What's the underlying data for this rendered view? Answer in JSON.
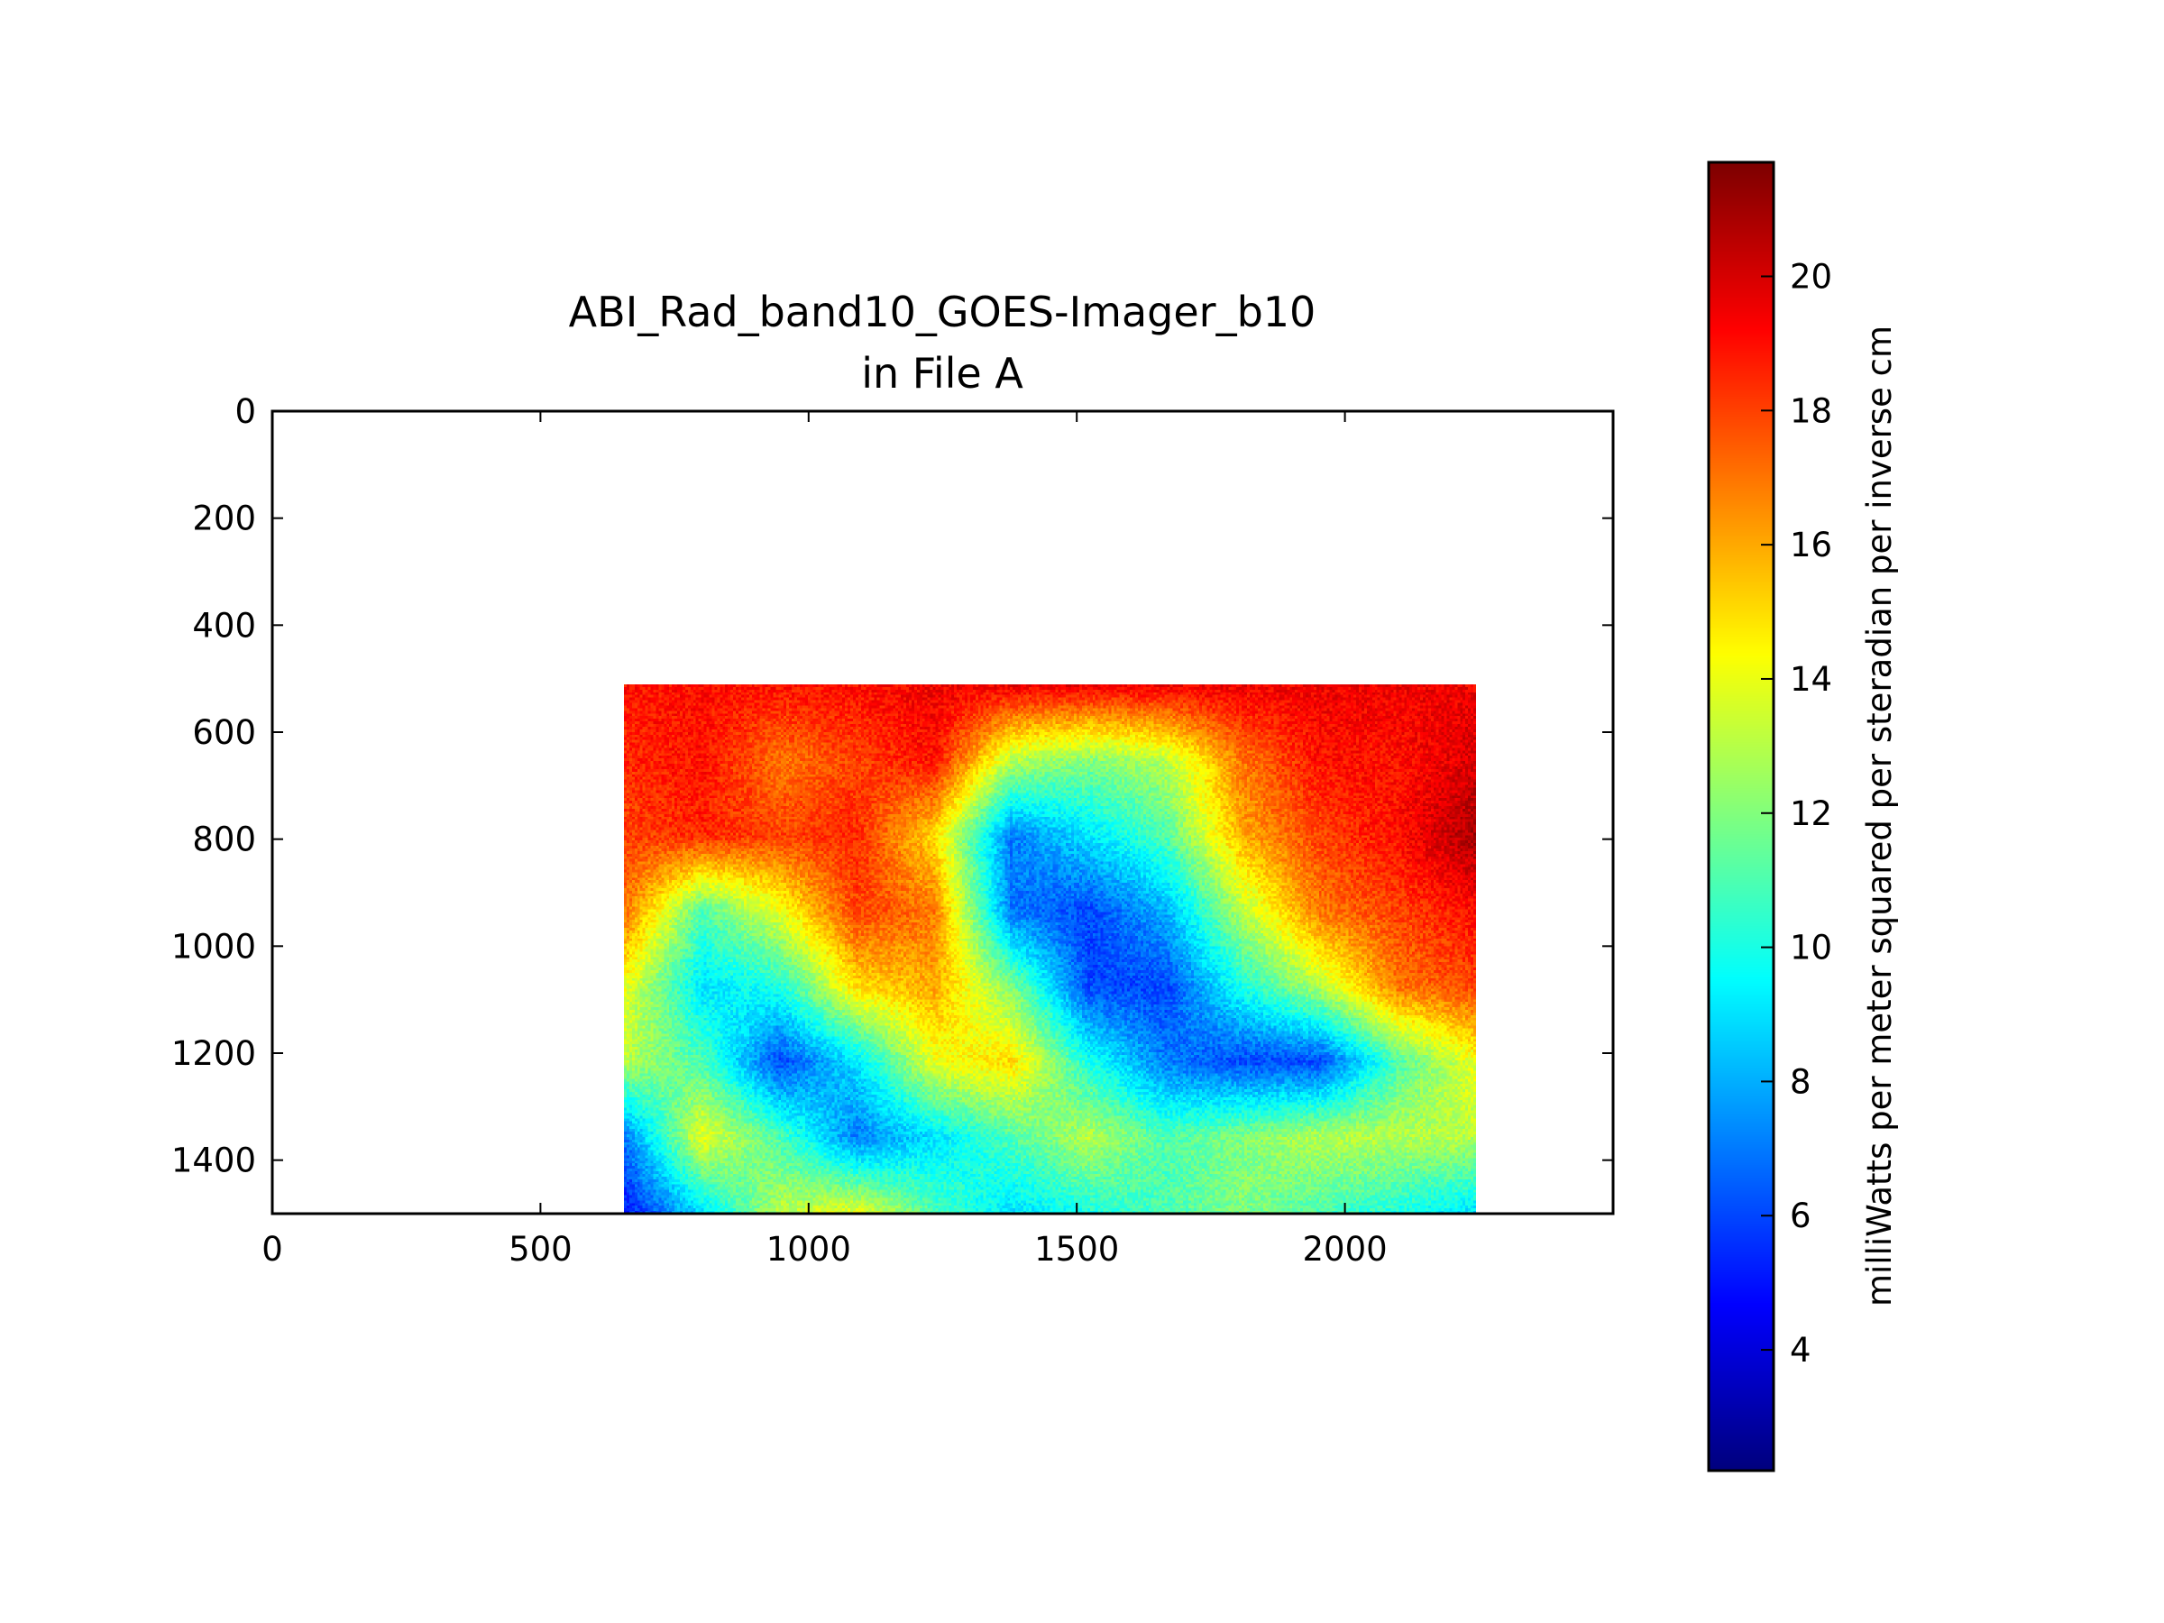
{
  "chart_data": {
    "type": "heatmap",
    "title": "ABI_Rad_band10_GOES-Imager_b10",
    "subtitle": "in File A",
    "xlabel": "",
    "ylabel": "",
    "colorbar_label": "milliWatts per meter squared per steradian per inverse cm",
    "colormap": "jet",
    "xlim": [
      0,
      2500
    ],
    "ylim": [
      1500,
      0
    ],
    "x_ticks": [
      0,
      500,
      1000,
      1500,
      2000
    ],
    "y_ticks": [
      0,
      200,
      400,
      600,
      800,
      1000,
      1200,
      1400
    ],
    "clim": [
      2.2,
      21.7
    ],
    "colorbar_ticks": [
      4,
      6,
      8,
      10,
      12,
      14,
      16,
      18,
      20
    ],
    "image_extent": {
      "x": [
        656,
        2245
      ],
      "y": [
        510,
        1500
      ]
    },
    "approx_values_grid": [
      [
        19,
        19,
        19,
        19,
        19.5,
        19.5,
        19.5,
        19.5,
        19.5,
        19.5,
        19.5,
        19.5
      ],
      [
        18.5,
        19,
        17,
        18,
        19,
        13,
        12,
        13,
        17,
        19,
        19,
        20
      ],
      [
        18,
        18.5,
        18,
        18.5,
        15,
        7,
        9,
        11,
        16,
        18,
        19,
        21
      ],
      [
        17,
        11,
        14,
        18,
        17,
        7,
        6,
        8,
        13,
        17,
        18,
        19
      ],
      [
        14,
        9,
        10,
        15,
        16,
        12,
        6,
        6,
        10,
        13,
        17,
        18
      ],
      [
        13,
        11,
        6,
        9,
        14,
        15,
        10,
        7,
        6,
        6,
        11,
        14
      ],
      [
        7,
        14,
        11,
        7,
        9,
        11,
        13,
        11,
        12,
        13,
        13,
        13
      ],
      [
        5,
        9,
        13,
        14,
        11,
        9,
        10,
        11,
        12,
        11,
        10,
        9
      ]
    ],
    "grid": false
  }
}
